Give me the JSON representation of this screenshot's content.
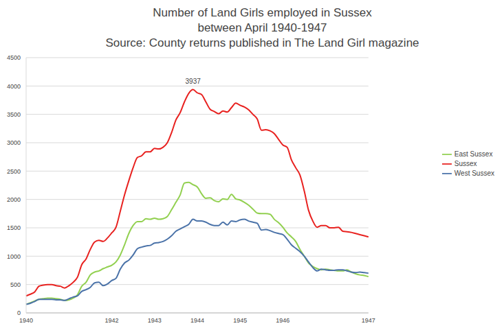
{
  "chart_data": {
    "type": "line",
    "title": "Number of Land Girls employed in Sussex",
    "subtitle": "between April 1940-1947",
    "source": "Source: County returns published in The Land Girl magazine",
    "categories": [
      "1940",
      null,
      null,
      null,
      null,
      null,
      null,
      null,
      null,
      null,
      null,
      null,
      null,
      null,
      null,
      null,
      null,
      null,
      null,
      null,
      "1942",
      null,
      null,
      null,
      null,
      null,
      null,
      null,
      null,
      null,
      "1943",
      null,
      null,
      null,
      null,
      null,
      null,
      null,
      null,
      null,
      "1944",
      null,
      null,
      null,
      null,
      null,
      null,
      null,
      null,
      null,
      "1945",
      null,
      null,
      null,
      null,
      null,
      null,
      null,
      null,
      null,
      "1946",
      null,
      null,
      null,
      null,
      null,
      null,
      null,
      null,
      null,
      null,
      null,
      null,
      null,
      null,
      null,
      null,
      null,
      null,
      null,
      "1947"
    ],
    "series": [
      {
        "name": "East Sussex",
        "color": "#92d050",
        "values": [
          150,
          180,
          210,
          240,
          250,
          260,
          260,
          250,
          240,
          220,
          230,
          260,
          320,
          470,
          540,
          670,
          720,
          740,
          780,
          810,
          840,
          900,
          1020,
          1200,
          1400,
          1540,
          1610,
          1610,
          1660,
          1650,
          1670,
          1650,
          1660,
          1700,
          1820,
          1950,
          2080,
          2290,
          2300,
          2260,
          2220,
          2100,
          2020,
          2030,
          1980,
          1960,
          2010,
          2000,
          2090,
          2010,
          1990,
          1950,
          1900,
          1830,
          1760,
          1750,
          1750,
          1740,
          1650,
          1590,
          1510,
          1410,
          1340,
          1260,
          1120,
          1000,
          880,
          820,
          780,
          760,
          770,
          760,
          750,
          740,
          740,
          760,
          720,
          690,
          670,
          660,
          640
        ]
      },
      {
        "name": "West Sussex",
        "color": "#4a72a8",
        "values": [
          150,
          170,
          200,
          240,
          240,
          240,
          240,
          230,
          230,
          220,
          250,
          280,
          300,
          380,
          410,
          450,
          530,
          540,
          480,
          510,
          570,
          610,
          770,
          880,
          930,
          1020,
          1130,
          1160,
          1180,
          1190,
          1230,
          1240,
          1260,
          1300,
          1360,
          1440,
          1480,
          1520,
          1560,
          1650,
          1620,
          1620,
          1600,
          1560,
          1540,
          1540,
          1600,
          1550,
          1620,
          1610,
          1640,
          1650,
          1620,
          1600,
          1580,
          1460,
          1470,
          1450,
          1420,
          1400,
          1380,
          1300,
          1200,
          1140,
          1080,
          1000,
          900,
          800,
          740,
          770,
          760,
          750,
          750,
          760,
          760,
          740,
          720,
          710,
          720,
          710,
          700
        ]
      },
      {
        "name": "Sussex",
        "color": "#e8211f",
        "values": [
          300,
          330,
          370,
          470,
          490,
          500,
          500,
          480,
          470,
          440,
          480,
          540,
          630,
          850,
          950,
          1120,
          1250,
          1280,
          1260,
          1320,
          1410,
          1510,
          1790,
          2080,
          2330,
          2560,
          2740,
          2770,
          2840,
          2840,
          2900,
          2890,
          2920,
          3000,
          3180,
          3400,
          3530,
          3720,
          3870,
          3937,
          3880,
          3850,
          3720,
          3590,
          3550,
          3510,
          3560,
          3540,
          3620,
          3700,
          3660,
          3630,
          3580,
          3500,
          3420,
          3220,
          3230,
          3210,
          3160,
          3060,
          2960,
          2920,
          2700,
          2560,
          2430,
          2150,
          1810,
          1620,
          1510,
          1540,
          1540,
          1500,
          1500,
          1510,
          1440,
          1430,
          1420,
          1400,
          1380,
          1360,
          1340
        ]
      }
    ],
    "annotations": [
      {
        "text": "3937",
        "series": "Sussex"
      }
    ],
    "ylim": [
      0,
      4500
    ],
    "yticks": [
      0,
      500,
      1000,
      1500,
      2000,
      2500,
      3000,
      3500,
      4000,
      4500
    ],
    "grid": true,
    "legend": "right"
  }
}
